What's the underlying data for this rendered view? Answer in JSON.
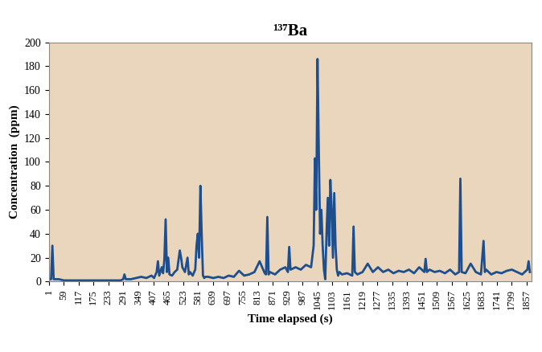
{
  "chart_data": {
    "type": "line",
    "title": "¹³⁷Ba",
    "x_label": "Time elapsed (s)",
    "y_label": "Concentration  (ppm)",
    "x": [
      1,
      5,
      10,
      15,
      20,
      40,
      60,
      80,
      100,
      120,
      140,
      160,
      180,
      200,
      220,
      240,
      260,
      280,
      290,
      295,
      300,
      320,
      340,
      360,
      380,
      400,
      410,
      420,
      425,
      430,
      440,
      445,
      450,
      455,
      460,
      465,
      470,
      480,
      490,
      500,
      505,
      510,
      515,
      520,
      530,
      540,
      545,
      550,
      560,
      570,
      575,
      580,
      585,
      590,
      595,
      600,
      605,
      610,
      620,
      640,
      660,
      680,
      700,
      720,
      740,
      760,
      780,
      800,
      820,
      840,
      845,
      850,
      855,
      860,
      880,
      900,
      920,
      930,
      935,
      940,
      960,
      980,
      1000,
      1020,
      1030,
      1035,
      1040,
      1045,
      1050,
      1055,
      1060,
      1065,
      1070,
      1075,
      1080,
      1085,
      1090,
      1095,
      1100,
      1105,
      1110,
      1115,
      1120,
      1125,
      1130,
      1140,
      1160,
      1180,
      1185,
      1190,
      1200,
      1220,
      1240,
      1260,
      1280,
      1300,
      1320,
      1340,
      1360,
      1380,
      1400,
      1420,
      1440,
      1460,
      1465,
      1470,
      1480,
      1500,
      1520,
      1540,
      1560,
      1580,
      1595,
      1600,
      1605,
      1620,
      1640,
      1660,
      1680,
      1690,
      1695,
      1700,
      1720,
      1740,
      1760,
      1780,
      1800,
      1820,
      1840,
      1860,
      1865,
      1870
    ],
    "values": [
      2,
      2,
      2,
      30,
      2,
      2,
      1,
      1,
      1,
      1,
      1,
      1,
      1,
      1,
      1,
      1,
      1,
      1,
      2,
      6,
      2,
      2,
      3,
      4,
      3,
      5,
      3,
      8,
      17,
      5,
      12,
      7,
      18,
      52,
      8,
      20,
      6,
      5,
      8,
      10,
      18,
      26,
      20,
      12,
      8,
      20,
      6,
      8,
      5,
      10,
      30,
      40,
      20,
      80,
      40,
      5,
      3,
      4,
      4,
      3,
      4,
      3,
      5,
      4,
      9,
      5,
      6,
      8,
      17,
      7,
      6,
      54,
      6,
      8,
      6,
      10,
      12,
      8,
      29,
      10,
      12,
      10,
      14,
      12,
      30,
      103,
      60,
      186,
      110,
      40,
      60,
      30,
      10,
      2,
      40,
      70,
      30,
      85,
      60,
      20,
      74,
      30,
      10,
      5,
      8,
      6,
      7,
      5,
      46,
      8,
      6,
      8,
      15,
      8,
      12,
      8,
      10,
      7,
      9,
      8,
      10,
      7,
      12,
      8,
      19,
      8,
      10,
      8,
      9,
      7,
      10,
      6,
      8,
      86,
      8,
      7,
      15,
      8,
      6,
      34,
      8,
      10,
      6,
      8,
      7,
      9,
      10,
      8,
      6,
      10,
      17,
      8
    ],
    "color": "#1f4e8c",
    "xlim": [
      1,
      1875
    ],
    "xticks": [
      1,
      59,
      117,
      175,
      233,
      291,
      349,
      407,
      465,
      523,
      581,
      639,
      697,
      755,
      813,
      871,
      929,
      987,
      1045,
      1103,
      1161,
      1219,
      1277,
      1335,
      1393,
      1451,
      1509,
      1567,
      1625,
      1683,
      1741,
      1799,
      1857
    ],
    "ylim": [
      0,
      200
    ],
    "yticks": [
      0,
      20,
      40,
      60,
      80,
      100,
      120,
      140,
      160,
      180,
      200
    ],
    "grid": false
  }
}
